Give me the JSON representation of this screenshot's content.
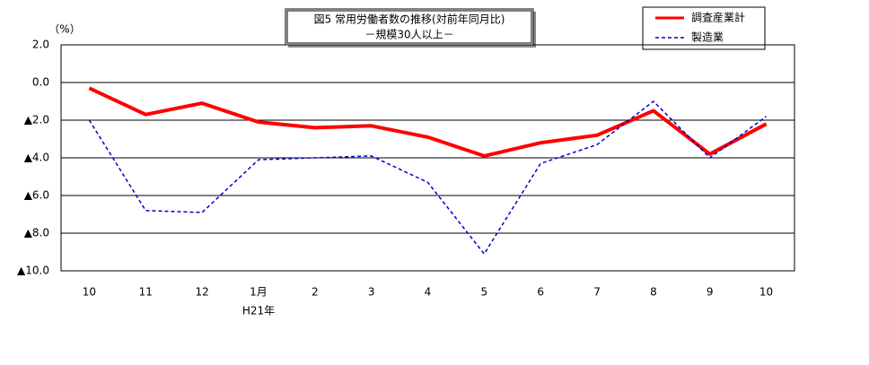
{
  "chart_data": {
    "type": "line",
    "title": "図5 常用労働者数の推移(対前年同月比)",
    "subtitle": "－規模30人以上－",
    "y_label": "（%）",
    "categories": [
      "10",
      "11",
      "12",
      "1月",
      "2",
      "3",
      "4",
      "5",
      "6",
      "7",
      "8",
      "9",
      "10"
    ],
    "x_annotation": "H21年",
    "ylim": [
      -10,
      2
    ],
    "yticks": [
      {
        "value": 2,
        "label": "2.0"
      },
      {
        "value": 0,
        "label": "0.0"
      },
      {
        "value": -2,
        "label": "▲2.0"
      },
      {
        "value": -4,
        "label": "▲4.0"
      },
      {
        "value": -6,
        "label": "▲6.0"
      },
      {
        "value": -8,
        "label": "▲8.0"
      },
      {
        "value": -10,
        "label": "▲10.0"
      }
    ],
    "grid": true,
    "legend": "top-right",
    "series": [
      {
        "name": "調査産業計",
        "color": "#ff0000",
        "dash": false,
        "values": [
          -0.3,
          -1.7,
          -1.1,
          -2.1,
          -2.4,
          -2.3,
          -2.9,
          -3.9,
          -3.2,
          -2.8,
          -1.5,
          -3.8,
          -2.2
        ]
      },
      {
        "name": "製造業",
        "color": "#0000cc",
        "dash": true,
        "values": [
          -2.0,
          -6.8,
          -6.9,
          -4.1,
          -4.0,
          -3.9,
          -5.3,
          -9.1,
          -4.3,
          -3.3,
          -1.0,
          -4.0,
          -1.8
        ]
      }
    ]
  }
}
